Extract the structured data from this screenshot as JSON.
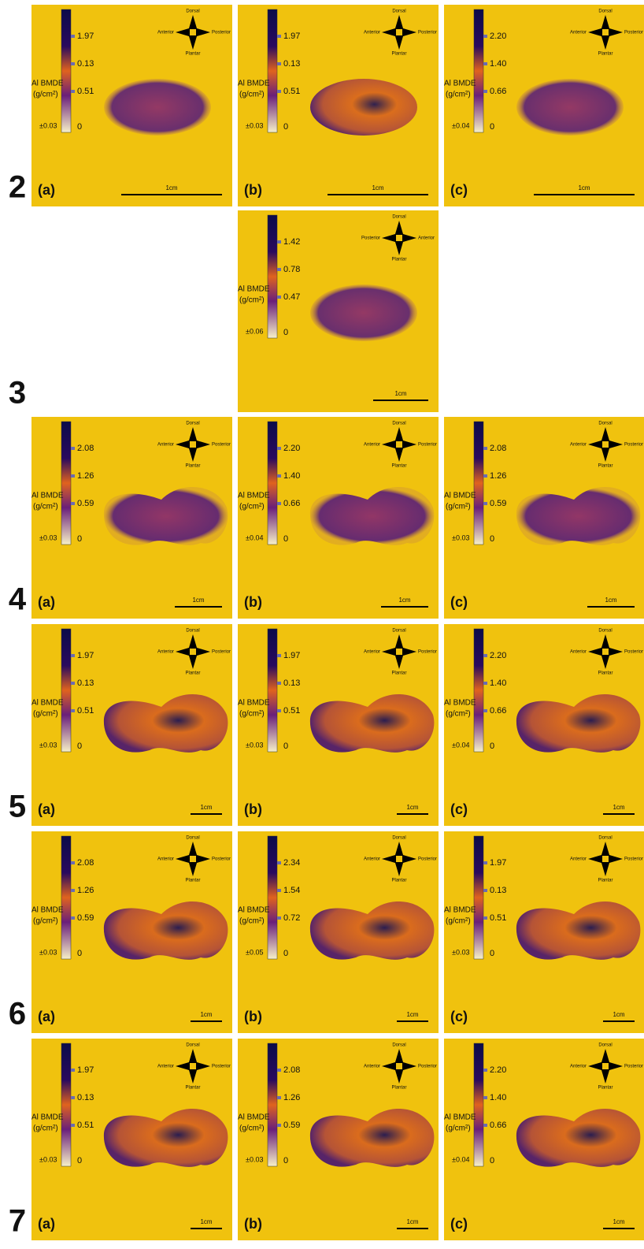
{
  "axis_label": "Al BMDE",
  "unit": "(g/cm²)",
  "zero": "0",
  "scale": "1cm",
  "dorsal": "Dorsal",
  "plantar": "Plantar",
  "rows": [
    {
      "label": "2",
      "panels": [
        {
          "col": 0,
          "letter": "(a)",
          "ticks": [
            "1.97",
            "0.13",
            "0.51"
          ],
          "error": "±0.03",
          "left": "Anterior",
          "right": "Posterior"
        },
        {
          "col": 1,
          "letter": "(b)",
          "ticks": [
            "1.97",
            "0.13",
            "0.51"
          ],
          "error": "±0.03",
          "left": "Anterior",
          "right": "Posterior"
        },
        {
          "col": 2,
          "letter": "(c)",
          "ticks": [
            "2.20",
            "1.40",
            "0.66"
          ],
          "error": "±0.04",
          "left": "Anterior",
          "right": "Posterior"
        }
      ]
    },
    {
      "label": "3",
      "panels": [
        {
          "col": 1,
          "ticks": [
            "1.42",
            "0.78",
            "0.47"
          ],
          "error": "±0.06",
          "left": "Posterior",
          "right": "Anterior"
        }
      ]
    },
    {
      "label": "4",
      "panels": [
        {
          "col": 0,
          "letter": "(a)",
          "ticks": [
            "2.08",
            "1.26",
            "0.59"
          ],
          "error": "±0.03",
          "left": "Anterior",
          "right": "Posterior"
        },
        {
          "col": 1,
          "letter": "(b)",
          "ticks": [
            "2.20",
            "1.40",
            "0.66"
          ],
          "error": "±0.04",
          "left": "Anterior",
          "right": "Posterior"
        },
        {
          "col": 2,
          "letter": "(c)",
          "ticks": [
            "2.08",
            "1.26",
            "0.59"
          ],
          "error": "±0.03",
          "left": "Anterior",
          "right": "Posterior"
        }
      ]
    },
    {
      "label": "5",
      "panels": [
        {
          "col": 0,
          "letter": "(a)",
          "ticks": [
            "1.97",
            "0.13",
            "0.51"
          ],
          "error": "±0.03",
          "left": "Anterior",
          "right": "Posterior"
        },
        {
          "col": 1,
          "letter": "(b)",
          "ticks": [
            "1.97",
            "0.13",
            "0.51"
          ],
          "error": "±0.03",
          "left": "Anterior",
          "right": "Posterior"
        },
        {
          "col": 2,
          "letter": "(c)",
          "ticks": [
            "2.20",
            "1.40",
            "0.66"
          ],
          "error": "±0.04",
          "left": "Anterior",
          "right": "Posterior"
        }
      ]
    },
    {
      "label": "6",
      "panels": [
        {
          "col": 0,
          "letter": "(a)",
          "ticks": [
            "2.08",
            "1.26",
            "0.59"
          ],
          "error": "±0.03",
          "left": "Anterior",
          "right": "Posterior"
        },
        {
          "col": 1,
          "letter": "(b)",
          "ticks": [
            "2.34",
            "1.54",
            "0.72"
          ],
          "error": "±0.05",
          "left": "Anterior",
          "right": "Posterior"
        },
        {
          "col": 2,
          "letter": "(c)",
          "ticks": [
            "1.97",
            "0.13",
            "0.51"
          ],
          "error": "±0.03",
          "left": "Anterior",
          "right": "Posterior"
        }
      ]
    },
    {
      "label": "7",
      "panels": [
        {
          "col": 0,
          "letter": "(a)",
          "ticks": [
            "1.97",
            "0.13",
            "0.51"
          ],
          "error": "±0.03",
          "left": "Anterior",
          "right": "Posterior"
        },
        {
          "col": 1,
          "letter": "(b)",
          "ticks": [
            "2.08",
            "1.26",
            "0.59"
          ],
          "error": "±0.03",
          "left": "Anterior",
          "right": "Posterior"
        },
        {
          "col": 2,
          "letter": "(c)",
          "ticks": [
            "2.20",
            "1.40",
            "0.66"
          ],
          "error": "±0.04",
          "left": "Anterior",
          "right": "Posterior"
        }
      ]
    }
  ]
}
